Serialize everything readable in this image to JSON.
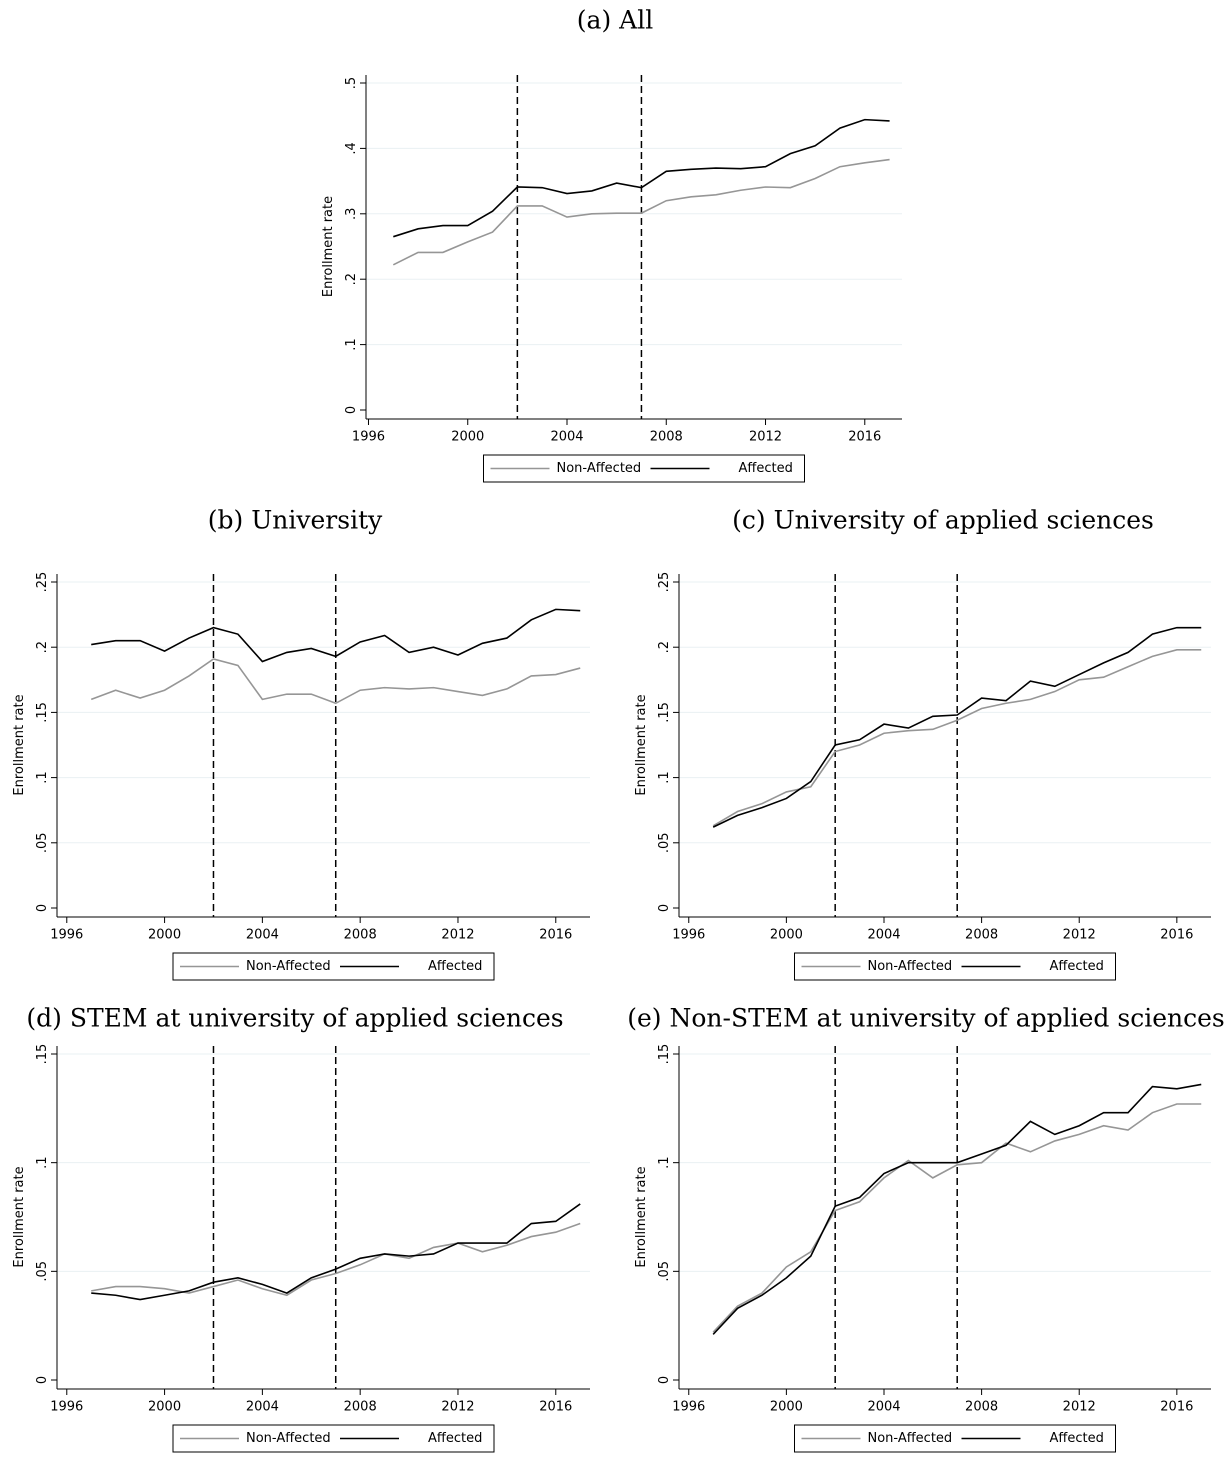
{
  "chart_data": [
    {
      "type": "line",
      "title": "(a) All",
      "ylabel": "Enrollment rate",
      "x": [
        1997,
        1998,
        1999,
        2000,
        2001,
        2002,
        2003,
        2004,
        2005,
        2006,
        2007,
        2008,
        2009,
        2010,
        2011,
        2012,
        2013,
        2014,
        2015,
        2016,
        2017
      ],
      "series": [
        {
          "name": "Non-Affected",
          "color": "#969696",
          "values": [
            0.222,
            0.241,
            0.241,
            0.257,
            0.272,
            0.312,
            0.312,
            0.295,
            0.3,
            0.301,
            0.301,
            0.32,
            0.326,
            0.329,
            0.336,
            0.341,
            0.34,
            0.354,
            0.372,
            0.378,
            0.383
          ]
        },
        {
          "name": "Affected",
          "color": "#000000",
          "values": [
            0.265,
            0.277,
            0.282,
            0.282,
            0.304,
            0.341,
            0.34,
            0.331,
            0.335,
            0.347,
            0.34,
            0.365,
            0.368,
            0.37,
            0.369,
            0.372,
            0.392,
            0.404,
            0.431,
            0.444,
            0.442
          ]
        }
      ],
      "xlim": [
        1995.9,
        2017.5
      ],
      "xticks": [
        1996,
        2000,
        2004,
        2008,
        2012,
        2016
      ],
      "ylim": [
        0,
        0.5
      ],
      "yticks": [
        0,
        {
          "value": 0.1,
          "label": ".1"
        },
        {
          "value": 0.2,
          "label": ".2"
        },
        {
          "value": 0.3,
          "label": ".3"
        },
        {
          "value": 0.4,
          "label": ".4"
        },
        {
          "value": 0.5,
          "label": ".5"
        }
      ],
      "vlines": [
        2002,
        2007
      ],
      "grid": true,
      "legend": "bottom"
    },
    {
      "type": "line",
      "title": "(b) University",
      "ylabel": "Enrollment rate",
      "x": [
        1997,
        1998,
        1999,
        2000,
        2001,
        2002,
        2003,
        2004,
        2005,
        2006,
        2007,
        2008,
        2009,
        2010,
        2011,
        2012,
        2013,
        2014,
        2015,
        2016,
        2017
      ],
      "series": [
        {
          "name": "Non-Affected",
          "color": "#969696",
          "values": [
            0.16,
            0.167,
            0.161,
            0.167,
            0.178,
            0.191,
            0.186,
            0.16,
            0.164,
            0.164,
            0.157,
            0.167,
            0.169,
            0.168,
            0.169,
            0.166,
            0.163,
            0.168,
            0.178,
            0.179,
            0.184
          ]
        },
        {
          "name": "Affected",
          "color": "#000000",
          "values": [
            0.202,
            0.205,
            0.205,
            0.197,
            0.207,
            0.215,
            0.21,
            0.189,
            0.196,
            0.199,
            0.193,
            0.204,
            0.209,
            0.196,
            0.2,
            0.194,
            0.203,
            0.207,
            0.221,
            0.229,
            0.228
          ]
        }
      ],
      "xlim": [
        1995.6,
        2017.4
      ],
      "xticks": [
        1996,
        2000,
        2004,
        2008,
        2012,
        2016
      ],
      "ylim": [
        0,
        0.25
      ],
      "yticks": [
        0,
        {
          "value": 0.05,
          "label": ".05"
        },
        {
          "value": 0.1,
          "label": ".1"
        },
        {
          "value": 0.15,
          "label": ".15"
        },
        {
          "value": 0.2,
          "label": ".2"
        },
        {
          "value": 0.25,
          "label": ".25"
        }
      ],
      "vlines": [
        2002,
        2007
      ],
      "grid": true,
      "legend": "bottom"
    },
    {
      "type": "line",
      "title": "(c) University of applied sciences",
      "ylabel": "Enrollment rate",
      "x": [
        1997,
        1998,
        1999,
        2000,
        2001,
        2002,
        2003,
        2004,
        2005,
        2006,
        2007,
        2008,
        2009,
        2010,
        2011,
        2012,
        2013,
        2014,
        2015,
        2016,
        2017
      ],
      "series": [
        {
          "name": "Non-Affected",
          "color": "#969696",
          "values": [
            0.063,
            0.074,
            0.08,
            0.089,
            0.093,
            0.12,
            0.125,
            0.134,
            0.136,
            0.137,
            0.144,
            0.153,
            0.157,
            0.16,
            0.166,
            0.175,
            0.177,
            0.185,
            0.193,
            0.198,
            0.198
          ]
        },
        {
          "name": "Affected",
          "color": "#000000",
          "values": [
            0.062,
            0.071,
            0.077,
            0.084,
            0.097,
            0.125,
            0.129,
            0.141,
            0.138,
            0.147,
            0.148,
            0.161,
            0.159,
            0.174,
            0.17,
            0.179,
            0.188,
            0.196,
            0.21,
            0.215,
            0.215
          ]
        }
      ],
      "xlim": [
        1995.6,
        2017.4
      ],
      "xticks": [
        1996,
        2000,
        2004,
        2008,
        2012,
        2016
      ],
      "ylim": [
        0,
        0.25
      ],
      "yticks": [
        0,
        {
          "value": 0.05,
          "label": ".05"
        },
        {
          "value": 0.1,
          "label": ".1"
        },
        {
          "value": 0.15,
          "label": ".15"
        },
        {
          "value": 0.2,
          "label": ".2"
        },
        {
          "value": 0.25,
          "label": ".25"
        }
      ],
      "vlines": [
        2002,
        2007
      ],
      "grid": true,
      "legend": "bottom"
    },
    {
      "type": "line",
      "title": "(d) STEM at university of applied sciences",
      "ylabel": "Enrollment rate",
      "x": [
        1997,
        1998,
        1999,
        2000,
        2001,
        2002,
        2003,
        2004,
        2005,
        2006,
        2007,
        2008,
        2009,
        2010,
        2011,
        2012,
        2013,
        2014,
        2015,
        2016,
        2017
      ],
      "series": [
        {
          "name": "Non-Affected",
          "color": "#969696",
          "values": [
            0.041,
            0.043,
            0.043,
            0.042,
            0.04,
            0.043,
            0.046,
            0.042,
            0.039,
            0.046,
            0.049,
            0.053,
            0.058,
            0.056,
            0.061,
            0.063,
            0.059,
            0.062,
            0.066,
            0.068,
            0.072
          ]
        },
        {
          "name": "Affected",
          "color": "#000000",
          "values": [
            0.04,
            0.039,
            0.037,
            0.039,
            0.041,
            0.045,
            0.047,
            0.044,
            0.04,
            0.047,
            0.051,
            0.056,
            0.058,
            0.057,
            0.058,
            0.063,
            0.063,
            0.063,
            0.072,
            0.073,
            0.081
          ]
        }
      ],
      "xlim": [
        1995.6,
        2017.4
      ],
      "xticks": [
        1996,
        2000,
        2004,
        2008,
        2012,
        2016
      ],
      "ylim": [
        0,
        0.15
      ],
      "yticks": [
        0,
        {
          "value": 0.05,
          "label": ".05"
        },
        {
          "value": 0.1,
          "label": ".1"
        },
        {
          "value": 0.15,
          "label": ".15"
        }
      ],
      "vlines": [
        2002,
        2007
      ],
      "grid": true,
      "legend": "bottom"
    },
    {
      "type": "line",
      "title": "(e) Non-STEM at university of applied sciences",
      "ylabel": "Enrollment rate",
      "x": [
        1997,
        1998,
        1999,
        2000,
        2001,
        2002,
        2003,
        2004,
        2005,
        2006,
        2007,
        2008,
        2009,
        2010,
        2011,
        2012,
        2013,
        2014,
        2015,
        2016,
        2017
      ],
      "series": [
        {
          "name": "Non-Affected",
          "color": "#969696",
          "values": [
            0.022,
            0.034,
            0.04,
            0.052,
            0.059,
            0.078,
            0.082,
            0.093,
            0.101,
            0.093,
            0.099,
            0.1,
            0.109,
            0.105,
            0.11,
            0.113,
            0.117,
            0.115,
            0.123,
            0.127,
            0.127
          ]
        },
        {
          "name": "Affected",
          "color": "#000000",
          "values": [
            0.021,
            0.033,
            0.039,
            0.047,
            0.057,
            0.08,
            0.084,
            0.095,
            0.1,
            0.1,
            0.1,
            0.104,
            0.108,
            0.119,
            0.113,
            0.117,
            0.123,
            0.123,
            0.135,
            0.134,
            0.136
          ]
        }
      ],
      "xlim": [
        1995.6,
        2017.4
      ],
      "xticks": [
        1996,
        2000,
        2004,
        2008,
        2012,
        2016
      ],
      "ylim": [
        0,
        0.15
      ],
      "yticks": [
        0,
        {
          "value": 0.05,
          "label": ".05"
        },
        {
          "value": 0.1,
          "label": ".1"
        },
        {
          "value": 0.15,
          "label": ".15"
        }
      ],
      "vlines": [
        2002,
        2007
      ],
      "grid": true,
      "legend": "bottom"
    }
  ]
}
